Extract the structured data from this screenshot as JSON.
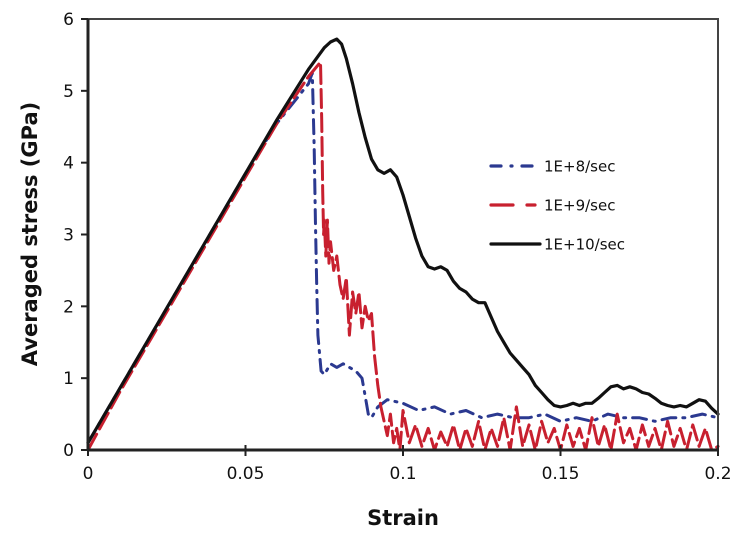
{
  "chart_data": {
    "type": "line",
    "title": "",
    "xlabel": "Strain",
    "ylabel": "Averaged stress (GPa)",
    "xlim": [
      0,
      0.2
    ],
    "ylim": [
      0,
      6
    ],
    "xticks": [
      0,
      0.05,
      0.1,
      0.15,
      0.2
    ],
    "xtick_labels": [
      "0",
      "0.05",
      "0.1",
      "0.15",
      "0.2"
    ],
    "yticks": [
      0,
      1,
      2,
      3,
      4,
      5,
      6
    ],
    "ytick_labels": [
      "0",
      "1",
      "2",
      "3",
      "4",
      "5",
      "6"
    ],
    "grid": false,
    "legend_position": "upper-right",
    "series": [
      {
        "name": "1E+8/sec",
        "color": "#2b3990",
        "style": "dash-dot",
        "x": [
          0,
          0.01,
          0.02,
          0.03,
          0.04,
          0.05,
          0.06,
          0.07,
          0.0712,
          0.0718,
          0.0722,
          0.0726,
          0.073,
          0.0735,
          0.074,
          0.075,
          0.077,
          0.079,
          0.081,
          0.083,
          0.085,
          0.087,
          0.088,
          0.089,
          0.09,
          0.092,
          0.095,
          0.1,
          0.105,
          0.11,
          0.115,
          0.12,
          0.125,
          0.13,
          0.135,
          0.14,
          0.145,
          0.15,
          0.155,
          0.16,
          0.165,
          0.17,
          0.175,
          0.18,
          0.185,
          0.19,
          0.195,
          0.2
        ],
        "y": [
          0.1,
          0.85,
          1.6,
          2.35,
          3.1,
          3.85,
          4.55,
          5.1,
          5.25,
          4.2,
          3.2,
          2.3,
          1.6,
          1.35,
          1.1,
          1.05,
          1.2,
          1.15,
          1.2,
          1.15,
          1.1,
          1.0,
          0.75,
          0.5,
          0.45,
          0.6,
          0.7,
          0.65,
          0.55,
          0.6,
          0.5,
          0.55,
          0.45,
          0.5,
          0.45,
          0.45,
          0.5,
          0.4,
          0.45,
          0.4,
          0.5,
          0.45,
          0.45,
          0.4,
          0.45,
          0.45,
          0.5,
          0.45
        ]
      },
      {
        "name": "1E+9/sec",
        "color": "#c8202f",
        "style": "long-dash",
        "x": [
          0,
          0.01,
          0.02,
          0.03,
          0.04,
          0.05,
          0.06,
          0.07,
          0.0738,
          0.0742,
          0.0745,
          0.0748,
          0.075,
          0.0755,
          0.076,
          0.0765,
          0.077,
          0.078,
          0.079,
          0.08,
          0.081,
          0.082,
          0.083,
          0.084,
          0.085,
          0.086,
          0.087,
          0.088,
          0.089,
          0.09,
          0.091,
          0.092,
          0.093,
          0.094,
          0.095,
          0.096,
          0.097,
          0.098,
          0.099,
          0.1,
          0.102,
          0.104,
          0.106,
          0.108,
          0.11,
          0.112,
          0.114,
          0.116,
          0.118,
          0.12,
          0.122,
          0.124,
          0.126,
          0.128,
          0.13,
          0.132,
          0.134,
          0.136,
          0.138,
          0.14,
          0.142,
          0.144,
          0.146,
          0.148,
          0.15,
          0.152,
          0.154,
          0.156,
          0.158,
          0.16,
          0.162,
          0.164,
          0.166,
          0.168,
          0.17,
          0.172,
          0.174,
          0.176,
          0.178,
          0.18,
          0.182,
          0.184,
          0.186,
          0.188,
          0.19,
          0.192,
          0.194,
          0.196,
          0.198,
          0.2
        ],
        "y": [
          0,
          0.8,
          1.55,
          2.3,
          3.05,
          3.8,
          4.55,
          5.2,
          5.4,
          4.6,
          3.6,
          3.0,
          3.2,
          2.7,
          3.2,
          2.6,
          2.9,
          2.5,
          2.7,
          2.3,
          2.1,
          2.4,
          1.6,
          2.2,
          1.9,
          2.2,
          1.7,
          2.0,
          1.8,
          1.9,
          1.3,
          0.9,
          0.6,
          0.4,
          0.2,
          0.5,
          0.1,
          0.3,
          0.0,
          0.55,
          0.1,
          0.35,
          0.05,
          0.3,
          0.0,
          0.25,
          0.05,
          0.35,
          0.0,
          0.3,
          0.05,
          0.4,
          0.0,
          0.3,
          0.05,
          0.45,
          0.0,
          0.6,
          0.05,
          0.35,
          0.0,
          0.4,
          0.1,
          0.3,
          0.0,
          0.35,
          0.05,
          0.3,
          0.0,
          0.45,
          0.05,
          0.35,
          0.0,
          0.5,
          0.1,
          0.3,
          0.0,
          0.35,
          0.05,
          0.3,
          0.0,
          0.4,
          0.05,
          0.3,
          0.0,
          0.35,
          0.05,
          0.3,
          0.0,
          0.05
        ]
      },
      {
        "name": "1E+10/sec",
        "color": "#111111",
        "style": "solid",
        "x": [
          0,
          0.01,
          0.02,
          0.03,
          0.04,
          0.05,
          0.06,
          0.07,
          0.075,
          0.077,
          0.079,
          0.0805,
          0.082,
          0.084,
          0.086,
          0.088,
          0.09,
          0.092,
          0.094,
          0.096,
          0.098,
          0.1,
          0.102,
          0.104,
          0.106,
          0.108,
          0.11,
          0.112,
          0.114,
          0.116,
          0.118,
          0.12,
          0.122,
          0.124,
          0.126,
          0.128,
          0.13,
          0.132,
          0.134,
          0.136,
          0.138,
          0.14,
          0.142,
          0.144,
          0.146,
          0.148,
          0.15,
          0.152,
          0.154,
          0.156,
          0.158,
          0.16,
          0.162,
          0.164,
          0.166,
          0.168,
          0.17,
          0.172,
          0.174,
          0.176,
          0.178,
          0.18,
          0.182,
          0.184,
          0.186,
          0.188,
          0.19,
          0.192,
          0.194,
          0.196,
          0.198,
          0.2
        ],
        "y": [
          0.1,
          0.85,
          1.6,
          2.35,
          3.1,
          3.85,
          4.6,
          5.3,
          5.6,
          5.68,
          5.72,
          5.65,
          5.45,
          5.1,
          4.7,
          4.35,
          4.05,
          3.9,
          3.85,
          3.9,
          3.8,
          3.55,
          3.25,
          2.95,
          2.7,
          2.55,
          2.52,
          2.55,
          2.5,
          2.35,
          2.25,
          2.2,
          2.1,
          2.05,
          2.05,
          1.85,
          1.65,
          1.5,
          1.35,
          1.25,
          1.15,
          1.05,
          0.9,
          0.8,
          0.7,
          0.62,
          0.6,
          0.62,
          0.65,
          0.62,
          0.65,
          0.65,
          0.72,
          0.8,
          0.88,
          0.9,
          0.85,
          0.88,
          0.85,
          0.8,
          0.78,
          0.72,
          0.65,
          0.62,
          0.6,
          0.62,
          0.6,
          0.65,
          0.7,
          0.68,
          0.58,
          0.5
        ]
      }
    ]
  }
}
